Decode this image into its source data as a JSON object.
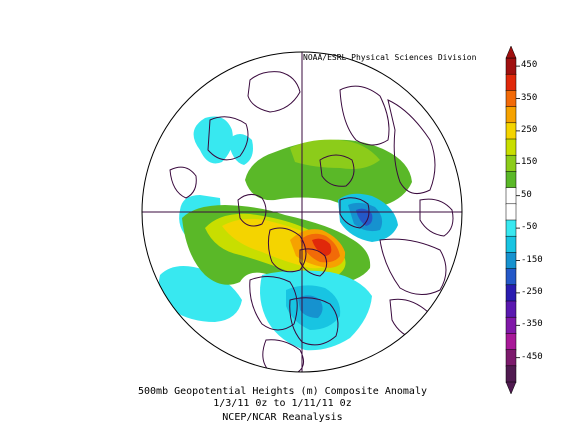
{
  "credit": "NOAA/ESRL Physical Sciences Division",
  "caption": {
    "line1": "500mb Geopotential Heights (m)   Composite Anomaly",
    "line2": "1/3/11 0z  to 1/11/11 0z",
    "line3": "NCEP/NCAR Reanalysis"
  },
  "colorbar": {
    "ticks": [
      "450",
      "350",
      "250",
      "150",
      "50",
      "-50",
      "-150",
      "-250",
      "-350",
      "-450"
    ],
    "colors": [
      "#a01010",
      "#e0280a",
      "#f26a08",
      "#f6a200",
      "#f4d400",
      "#c8de00",
      "#8ccc1a",
      "#5ab828",
      "#ffffff",
      "#ffffff",
      "#38e8f0",
      "#18c4e2",
      "#1692cf",
      "#2458c8",
      "#2a1cb0",
      "#5a18b0",
      "#8018a8",
      "#a81898",
      "#7c1a6c",
      "#501a50"
    ]
  },
  "colors": {
    "coast": "#3a0a3e",
    "grid": "#3a0a3e"
  }
}
